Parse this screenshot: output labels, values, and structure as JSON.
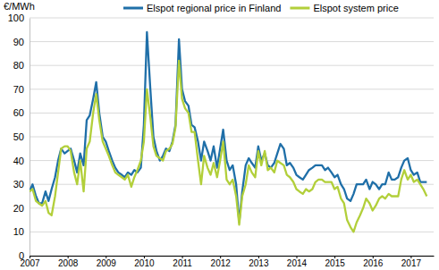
{
  "chart_data": {
    "type": "line",
    "y_label": "€/MWh",
    "x": [
      2007,
      2007.08,
      2007.17,
      2007.25,
      2007.33,
      2007.42,
      2007.5,
      2007.58,
      2007.67,
      2007.75,
      2007.83,
      2007.92,
      2008,
      2008.08,
      2008.17,
      2008.25,
      2008.33,
      2008.42,
      2008.5,
      2008.58,
      2008.67,
      2008.75,
      2008.83,
      2008.92,
      2009,
      2009.08,
      2009.17,
      2009.25,
      2009.33,
      2009.42,
      2009.5,
      2009.58,
      2009.67,
      2009.75,
      2009.83,
      2009.92,
      2010,
      2010.08,
      2010.17,
      2010.25,
      2010.33,
      2010.42,
      2010.5,
      2010.58,
      2010.67,
      2010.75,
      2010.83,
      2010.92,
      2011,
      2011.08,
      2011.17,
      2011.25,
      2011.33,
      2011.42,
      2011.5,
      2011.58,
      2011.67,
      2011.75,
      2011.83,
      2011.92,
      2012,
      2012.08,
      2012.17,
      2012.25,
      2012.33,
      2012.42,
      2012.5,
      2012.58,
      2012.67,
      2012.75,
      2012.83,
      2012.92,
      2013,
      2013.08,
      2013.17,
      2013.25,
      2013.33,
      2013.42,
      2013.5,
      2013.58,
      2013.67,
      2013.75,
      2013.83,
      2013.92,
      2014,
      2014.08,
      2014.17,
      2014.25,
      2014.33,
      2014.42,
      2014.5,
      2014.58,
      2014.67,
      2014.75,
      2014.83,
      2014.92,
      2015,
      2015.08,
      2015.17,
      2015.25,
      2015.33,
      2015.42,
      2015.5,
      2015.58,
      2015.67,
      2015.75,
      2015.83,
      2015.92,
      2016,
      2016.08,
      2016.17,
      2016.25,
      2016.33,
      2016.42,
      2016.5,
      2016.58,
      2016.67,
      2016.75,
      2016.83,
      2016.92,
      2017,
      2017.08,
      2017.17,
      2017.25,
      2017.33,
      2017.42
    ],
    "series": [
      {
        "name": "Elspot regional price in Finland",
        "color": "#1f6fa8",
        "values": [
          27,
          30,
          25,
          22,
          22,
          27,
          23,
          28,
          33,
          40,
          45,
          43,
          44,
          45,
          40,
          35,
          43,
          38,
          57,
          59,
          66,
          73,
          60,
          50,
          48,
          44,
          40,
          37,
          35,
          34,
          33,
          35,
          34,
          36,
          35,
          37,
          55,
          94,
          70,
          50,
          44,
          40,
          42,
          45,
          44,
          48,
          55,
          91,
          70,
          65,
          63,
          55,
          54,
          48,
          40,
          48,
          44,
          40,
          46,
          37,
          45,
          53,
          40,
          36,
          38,
          30,
          14,
          27,
          38,
          41,
          39,
          37,
          46,
          40,
          43,
          38,
          37,
          39,
          43,
          47,
          45,
          38,
          39,
          37,
          34,
          33,
          32,
          34,
          36,
          37,
          38,
          38,
          38,
          36,
          37,
          35,
          33,
          34,
          30,
          28,
          24,
          23,
          26,
          30,
          30,
          30,
          32,
          28,
          31,
          30,
          28,
          30,
          30,
          35,
          32,
          32,
          33,
          37,
          40,
          41,
          36,
          34,
          35,
          31,
          31,
          31
        ]
      },
      {
        "name": "Elspot system price",
        "color": "#b2cf3a",
        "values": [
          27,
          28,
          23,
          22,
          21,
          23,
          18,
          17,
          25,
          35,
          45,
          46,
          46,
          44,
          35,
          30,
          40,
          27,
          45,
          48,
          60,
          68,
          57,
          48,
          45,
          42,
          38,
          35,
          34,
          33,
          32,
          34,
          29,
          33,
          36,
          40,
          48,
          70,
          58,
          46,
          42,
          41,
          40,
          44,
          45,
          47,
          54,
          82,
          66,
          62,
          60,
          52,
          52,
          40,
          30,
          42,
          37,
          34,
          39,
          33,
          40,
          48,
          32,
          30,
          32,
          25,
          13,
          25,
          30,
          38,
          35,
          33,
          44,
          38,
          44,
          36,
          37,
          35,
          40,
          39,
          38,
          34,
          33,
          31,
          28,
          27,
          26,
          28,
          27,
          28,
          31,
          32,
          32,
          31,
          31,
          31,
          28,
          29,
          24,
          22,
          15,
          12,
          10,
          14,
          17,
          20,
          24,
          22,
          19,
          21,
          24,
          25,
          24,
          26,
          25,
          25,
          25,
          32,
          36,
          32,
          34,
          31,
          32,
          30,
          28,
          25
        ]
      }
    ],
    "xlim": [
      2007,
      2017.6
    ],
    "xticks": [
      2007,
      2008,
      2009,
      2010,
      2011,
      2012,
      2013,
      2014,
      2015,
      2016,
      2017
    ],
    "ylim": [
      0,
      100
    ],
    "yticks": [
      0,
      10,
      20,
      30,
      40,
      50,
      60,
      70,
      80,
      90,
      100
    ],
    "grid": true,
    "legend": "top"
  }
}
